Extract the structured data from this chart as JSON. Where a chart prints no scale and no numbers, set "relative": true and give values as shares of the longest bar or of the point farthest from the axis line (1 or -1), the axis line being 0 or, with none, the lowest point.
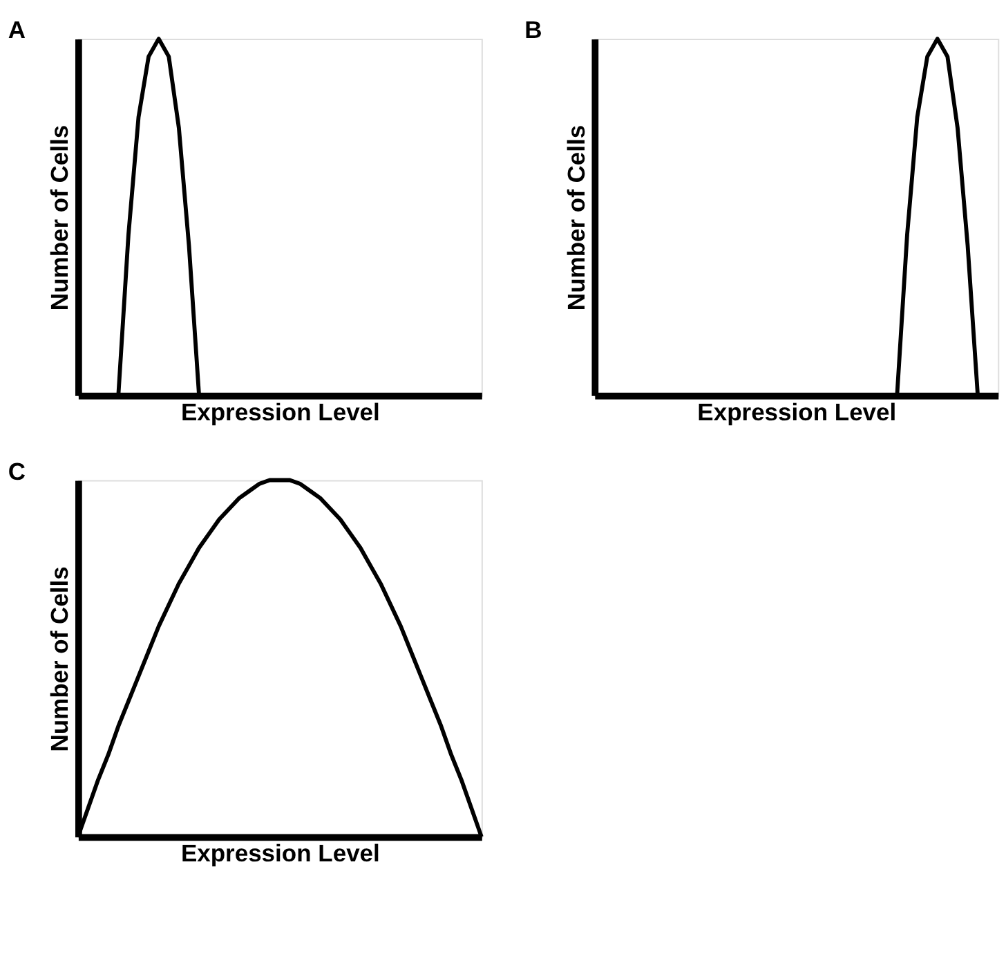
{
  "chart_data": [
    {
      "type": "line",
      "title": "A",
      "xlabel": "Expression Level",
      "ylabel": "Number of Cells",
      "relative": true,
      "color": "#000000",
      "categories": [
        null,
        null,
        null,
        null,
        null,
        null,
        null,
        null,
        null,
        null,
        null,
        null,
        null,
        null,
        null,
        null,
        null,
        null,
        null,
        null,
        null,
        null,
        null,
        null,
        null,
        null,
        null,
        null,
        null,
        null,
        null,
        null,
        null,
        null,
        null,
        null,
        null,
        null,
        null,
        null,
        null
      ],
      "values": [
        null,
        null,
        null,
        null,
        0,
        0.45,
        0.78,
        0.95,
        1,
        0.95,
        0.75,
        0.42,
        0,
        null,
        null,
        null,
        null,
        null,
        null,
        null,
        null,
        null,
        null,
        null,
        null,
        null,
        null,
        null,
        null,
        null,
        null,
        null,
        null,
        null,
        null,
        null,
        null,
        null,
        null,
        null,
        null
      ]
    },
    {
      "type": "line",
      "title": "B",
      "xlabel": "Expression Level",
      "ylabel": "Number of Cells",
      "relative": true,
      "color": "#000000",
      "categories": [
        null,
        null,
        null,
        null,
        null,
        null,
        null,
        null,
        null,
        null,
        null,
        null,
        null,
        null,
        null,
        null,
        null,
        null,
        null,
        null,
        null,
        null,
        null,
        null,
        null,
        null,
        null,
        null,
        null,
        null,
        null,
        null,
        null,
        null,
        null,
        null,
        null,
        null,
        null,
        null,
        null
      ],
      "values": [
        null,
        null,
        null,
        null,
        null,
        null,
        null,
        null,
        null,
        null,
        null,
        null,
        null,
        null,
        null,
        null,
        null,
        null,
        null,
        null,
        null,
        null,
        null,
        null,
        null,
        null,
        null,
        null,
        null,
        null,
        0,
        0.45,
        0.78,
        0.95,
        1,
        0.95,
        0.75,
        0.42,
        0,
        null,
        null
      ]
    },
    {
      "type": "line",
      "title": "C",
      "xlabel": "Expression Level",
      "ylabel": "Number of Cells",
      "relative": true,
      "color": "#000000",
      "categories": [
        null,
        null,
        null,
        null,
        null,
        null,
        null,
        null,
        null,
        null,
        null,
        null,
        null,
        null,
        null,
        null,
        null,
        null,
        null,
        null,
        null,
        null,
        null,
        null,
        null,
        null,
        null,
        null,
        null,
        null,
        null,
        null,
        null,
        null,
        null,
        null,
        null,
        null,
        null,
        null,
        null
      ],
      "values": [
        0,
        0.08,
        0.16,
        0.23,
        0.31,
        0.38,
        0.45,
        0.52,
        0.59,
        0.65,
        0.71,
        0.76,
        0.81,
        0.85,
        0.89,
        0.92,
        0.95,
        0.97,
        0.99,
        1.0,
        1.0,
        1.0,
        0.99,
        0.97,
        0.95,
        0.92,
        0.89,
        0.85,
        0.81,
        0.76,
        0.71,
        0.65,
        0.59,
        0.52,
        0.45,
        0.38,
        0.31,
        0.23,
        0.16,
        0.08,
        0
      ]
    }
  ]
}
